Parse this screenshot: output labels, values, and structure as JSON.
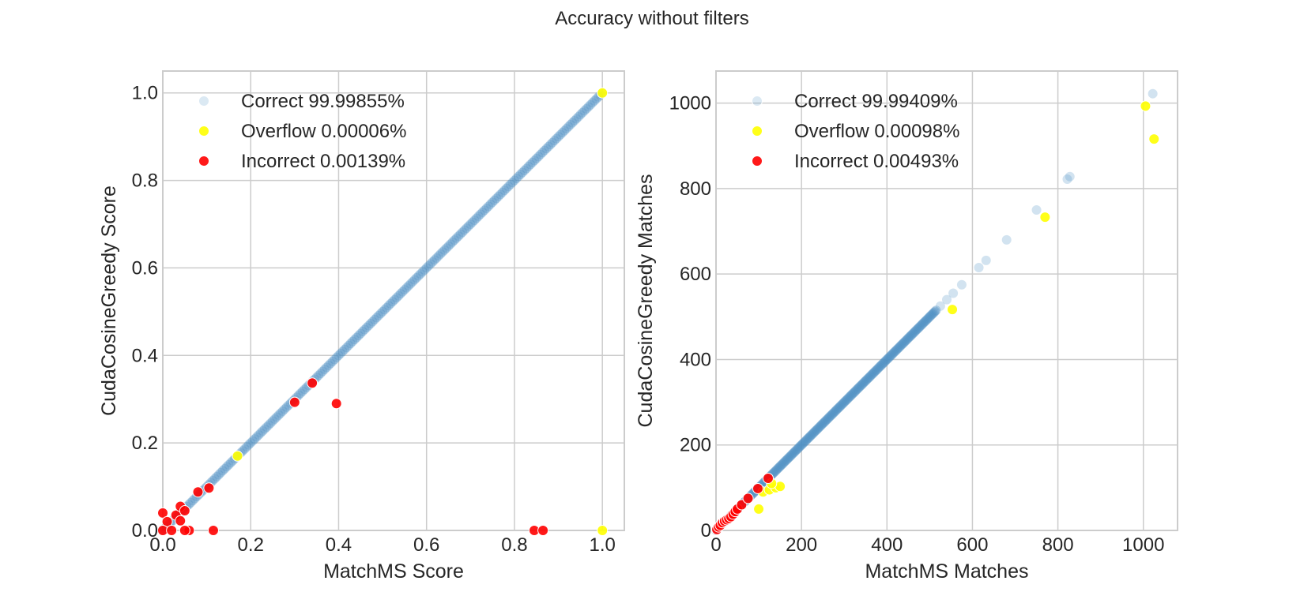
{
  "figure": {
    "title": "Accuracy without filters"
  },
  "colors": {
    "correct": "#4c8fc3",
    "overflow": "#ffff00",
    "incorrect": "#ff0000",
    "grid": "#cccccc",
    "frame": "#cccccc"
  },
  "chart_data": [
    {
      "type": "scatter",
      "title": "",
      "xlabel": "MatchMS Score",
      "ylabel": "CudaCosineGreedy Score",
      "xlim": [
        0.0,
        1.05
      ],
      "ylim": [
        0.0,
        1.05
      ],
      "xticks": [
        "0.0",
        "0.2",
        "0.4",
        "0.6",
        "0.8",
        "1.0"
      ],
      "xtick_values": [
        0.0,
        0.2,
        0.4,
        0.6,
        0.8,
        1.0
      ],
      "yticks": [
        "0.0",
        "0.2",
        "0.4",
        "0.6",
        "0.8",
        "1.0"
      ],
      "ytick_values": [
        0.0,
        0.2,
        0.4,
        0.6,
        0.8,
        1.0
      ],
      "grid": true,
      "legend_position": "upper-left",
      "series": [
        {
          "name": "Correct 99.99855%",
          "color": "#4c8fc3",
          "line": {
            "from": [
              0.0,
              0.0
            ],
            "to": [
              1.0,
              1.0
            ]
          },
          "points": []
        },
        {
          "name": "Overflow 0.00006%",
          "color": "#ffff00",
          "points": [
            [
              0.17,
              0.17
            ],
            [
              1.0,
              1.0
            ],
            [
              1.0,
              0.0
            ]
          ]
        },
        {
          "name": "Incorrect 0.00139%",
          "color": "#ff0000",
          "points": [
            [
              0.0,
              0.04
            ],
            [
              0.01,
              0.02
            ],
            [
              0.0,
              0.0
            ],
            [
              0.02,
              0.0
            ],
            [
              0.03,
              0.035
            ],
            [
              0.04,
              0.022
            ],
            [
              0.04,
              0.055
            ],
            [
              0.05,
              0.045
            ],
            [
              0.06,
              0.0
            ],
            [
              0.05,
              0.0
            ],
            [
              0.08,
              0.088
            ],
            [
              0.105,
              0.097
            ],
            [
              0.115,
              0.0
            ],
            [
              0.3,
              0.293
            ],
            [
              0.34,
              0.337
            ],
            [
              0.395,
              0.29
            ],
            [
              0.845,
              0.0
            ],
            [
              0.865,
              0.0
            ]
          ]
        }
      ]
    },
    {
      "type": "scatter",
      "title": "",
      "xlabel": "MatchMS Matches",
      "ylabel": "CudaCosineGreedy Matches",
      "xlim": [
        0,
        1080
      ],
      "ylim": [
        0,
        1075
      ],
      "xticks": [
        "0",
        "200",
        "400",
        "600",
        "800",
        "1000"
      ],
      "xtick_values": [
        0,
        200,
        400,
        600,
        800,
        1000
      ],
      "yticks": [
        "0",
        "200",
        "400",
        "600",
        "800",
        "1000"
      ],
      "ytick_values": [
        0,
        200,
        400,
        600,
        800,
        1000
      ],
      "grid": true,
      "legend_position": "upper-left",
      "series": [
        {
          "name": "Correct 99.99409%",
          "color": "#4c8fc3",
          "line": {
            "from": [
              0,
              0
            ],
            "to": [
              515,
              515
            ]
          },
          "points": [
            [
              525,
              525
            ],
            [
              540,
              540
            ],
            [
              555,
              555
            ],
            [
              575,
              575
            ],
            [
              615,
              615
            ],
            [
              632,
              632
            ],
            [
              680,
              680
            ],
            [
              750,
              750
            ],
            [
              822,
              822
            ],
            [
              828,
              828
            ],
            [
              1022,
              1022
            ]
          ]
        },
        {
          "name": "Overflow 0.00098%",
          "color": "#ffff00",
          "points": [
            [
              100,
              50
            ],
            [
              110,
              90
            ],
            [
              125,
              95
            ],
            [
              140,
              100
            ],
            [
              150,
              103
            ],
            [
              130,
              110
            ],
            [
              553,
              517
            ],
            [
              770,
              733
            ],
            [
              1005,
              993
            ],
            [
              1025,
              916
            ]
          ]
        },
        {
          "name": "Incorrect 0.00493%",
          "color": "#ff0000",
          "points": [
            [
              2,
              2
            ],
            [
              6,
              8
            ],
            [
              10,
              12
            ],
            [
              15,
              18
            ],
            [
              20,
              22
            ],
            [
              25,
              25
            ],
            [
              30,
              28
            ],
            [
              35,
              32
            ],
            [
              40,
              38
            ],
            [
              45,
              44
            ],
            [
              50,
              50
            ],
            [
              60,
              60
            ],
            [
              75,
              75
            ],
            [
              98,
              98
            ],
            [
              122,
              122
            ]
          ]
        }
      ]
    }
  ]
}
